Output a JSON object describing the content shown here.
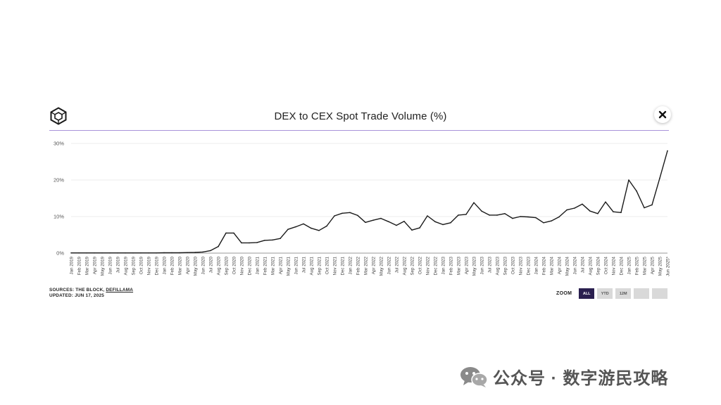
{
  "header": {
    "title": "DEX to CEX Spot Trade Volume (%)"
  },
  "footer": {
    "sources_prefix": "SOURCES: THE BLOCK, ",
    "sources_link": "DEFILLAMA",
    "updated": "UPDATED: JUN 17, 2025",
    "zoom_label": "ZOOM",
    "zoom_options": [
      "ALL",
      "YTD",
      "12M",
      "",
      ""
    ],
    "zoom_selected": "ALL"
  },
  "watermark": {
    "text": "公众号 · 数字游民攻略"
  },
  "colors": {
    "line": "#1a1a1a",
    "accent_rule": "#a893d9",
    "zoom_active": "#2a1f4f"
  },
  "chart_data": {
    "type": "line",
    "title": "DEX to CEX Spot Trade Volume (%)",
    "xlabel": "",
    "ylabel": "",
    "ylim": [
      0,
      30
    ],
    "y_ticks": [
      "0%",
      "10%",
      "20%",
      "30%"
    ],
    "grid": true,
    "x": [
      "Jan 2019",
      "Feb 2019",
      "Mar 2019",
      "Apr 2019",
      "May 2019",
      "Jun 2019",
      "Jul 2019",
      "Aug 2019",
      "Sep 2019",
      "Oct 2019",
      "Nov 2019",
      "Dec 2019",
      "Jan 2020",
      "Feb 2020",
      "Mar 2020",
      "Apr 2020",
      "May 2020",
      "Jun 2020",
      "Jul 2020",
      "Aug 2020",
      "Sep 2020",
      "Oct 2020",
      "Nov 2020",
      "Dec 2020",
      "Jan 2021",
      "Feb 2021",
      "Mar 2021",
      "Apr 2021",
      "May 2021",
      "Jun 2021",
      "Jul 2021",
      "Aug 2021",
      "Sep 2021",
      "Oct 2021",
      "Nov 2021",
      "Dec 2021",
      "Jan 2022",
      "Feb 2022",
      "Mar 2022",
      "Apr 2022",
      "May 2022",
      "Jun 2022",
      "Jul 2022",
      "Aug 2022",
      "Sep 2022",
      "Oct 2022",
      "Nov 2022",
      "Dec 2022",
      "Jan 2023",
      "Feb 2023",
      "Mar 2023",
      "Apr 2023",
      "May 2023",
      "Jun 2023",
      "Jul 2023",
      "Aug 2023",
      "Sep 2023",
      "Oct 2023",
      "Nov 2023",
      "Dec 2023",
      "Jan 2024",
      "Feb 2024",
      "Mar 2024",
      "Apr 2024",
      "May 2024",
      "Jun 2024",
      "Jul 2024",
      "Aug 2024",
      "Sep 2024",
      "Oct 2024",
      "Nov 2024",
      "Dec 2024",
      "Jan 2025",
      "Feb 2025",
      "Mar 2025",
      "Apr 2025",
      "May 2025",
      "Jun 2025*"
    ],
    "series": [
      {
        "values": [
          0.05,
          0.05,
          0.05,
          0.05,
          0.05,
          0.05,
          0.05,
          0.05,
          0.05,
          0.05,
          0.05,
          0.05,
          0.1,
          0.1,
          0.1,
          0.15,
          0.2,
          0.3,
          0.7,
          1.8,
          5.5,
          5.5,
          2.8,
          2.8,
          2.9,
          3.5,
          3.6,
          4.0,
          6.5,
          7.2,
          8.0,
          6.8,
          6.2,
          7.4,
          10.2,
          10.9,
          11.1,
          10.3,
          8.4,
          9.0,
          9.5,
          8.6,
          7.6,
          8.7,
          6.3,
          6.9,
          10.2,
          8.6,
          7.8,
          8.3,
          10.4,
          10.6,
          13.8,
          11.5,
          10.4,
          10.4,
          10.8,
          9.5,
          10.0,
          9.9,
          9.7,
          8.3,
          8.8,
          9.9,
          11.8,
          12.3,
          13.4,
          11.5,
          10.8,
          14.0,
          11.3,
          11.1,
          20.0,
          17.0,
          12.4,
          13.2,
          20.5,
          28.0
        ]
      }
    ]
  }
}
